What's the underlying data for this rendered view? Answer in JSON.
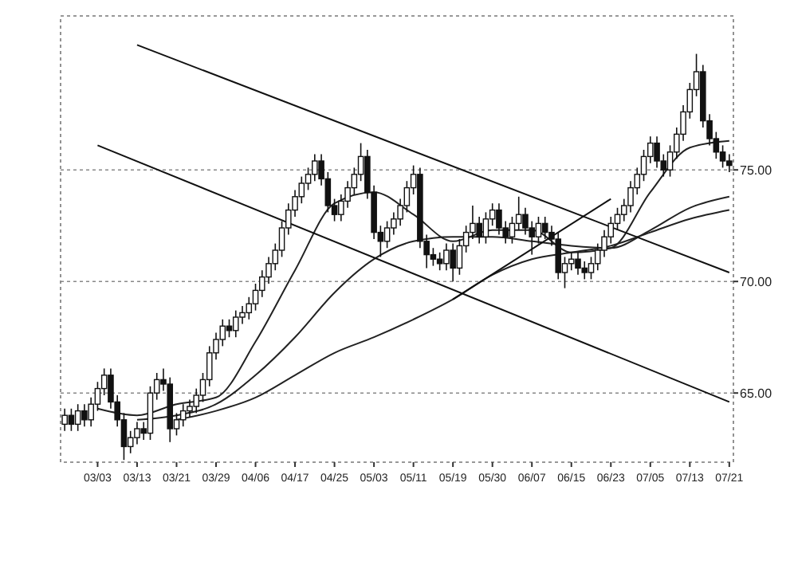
{
  "chart_data": {
    "type": "candlestick",
    "color": "#111111",
    "categories": [
      null,
      null,
      null,
      null,
      null,
      "03/03",
      null,
      null,
      null,
      null,
      null,
      "03/13",
      null,
      null,
      null,
      null,
      null,
      "03/21",
      null,
      null,
      null,
      null,
      null,
      "03/29",
      null,
      null,
      null,
      null,
      null,
      "04/06",
      null,
      null,
      null,
      null,
      null,
      "04/17",
      null,
      null,
      null,
      null,
      null,
      "04/25",
      null,
      null,
      null,
      null,
      null,
      "05/03",
      null,
      null,
      null,
      null,
      null,
      "05/11",
      null,
      null,
      null,
      null,
      null,
      "05/19",
      null,
      null,
      null,
      null,
      null,
      "05/30",
      null,
      null,
      null,
      null,
      null,
      "06/07",
      null,
      null,
      null,
      null,
      null,
      "06/15",
      null,
      null,
      null,
      null,
      null,
      "06/23",
      null,
      null,
      null,
      null,
      null,
      "07/05",
      null,
      null,
      null,
      null,
      null,
      "07/13",
      null,
      null,
      null,
      null,
      null,
      "07/21"
    ],
    "ohlc": [
      [
        63.6,
        64.3,
        63.3,
        64.0
      ],
      [
        64.0,
        64.3,
        63.3,
        63.6
      ],
      [
        63.6,
        64.5,
        63.3,
        64.2
      ],
      [
        64.2,
        64.5,
        63.5,
        63.8
      ],
      [
        63.8,
        64.8,
        63.5,
        64.5
      ],
      [
        64.5,
        65.5,
        64.2,
        65.2
      ],
      [
        65.2,
        66.1,
        64.9,
        65.8
      ],
      [
        65.8,
        66.1,
        64.3,
        64.6
      ],
      [
        64.6,
        64.9,
        63.5,
        63.8
      ],
      [
        63.8,
        64.1,
        62.0,
        62.6
      ],
      [
        62.6,
        63.3,
        62.3,
        63.0
      ],
      [
        63.0,
        63.7,
        62.7,
        63.4
      ],
      [
        63.4,
        63.7,
        62.9,
        63.2
      ],
      [
        63.2,
        65.3,
        62.9,
        65.0
      ],
      [
        65.0,
        65.9,
        64.7,
        65.6
      ],
      [
        65.6,
        66.1,
        65.1,
        65.4
      ],
      [
        65.4,
        65.7,
        62.8,
        63.4
      ],
      [
        63.4,
        64.1,
        63.1,
        63.8
      ],
      [
        63.8,
        64.5,
        63.5,
        64.2
      ],
      [
        64.2,
        64.7,
        63.9,
        64.4
      ],
      [
        64.4,
        65.2,
        64.1,
        64.9
      ],
      [
        64.9,
        65.9,
        64.6,
        65.6
      ],
      [
        65.6,
        67.1,
        65.3,
        66.8
      ],
      [
        66.8,
        67.7,
        66.5,
        67.4
      ],
      [
        67.4,
        68.3,
        67.1,
        68.0
      ],
      [
        68.0,
        68.3,
        67.5,
        67.8
      ],
      [
        67.8,
        68.7,
        67.5,
        68.4
      ],
      [
        68.4,
        68.9,
        68.1,
        68.6
      ],
      [
        68.6,
        69.3,
        68.3,
        69.0
      ],
      [
        69.0,
        69.9,
        68.7,
        69.6
      ],
      [
        69.6,
        70.5,
        69.3,
        70.2
      ],
      [
        70.2,
        71.1,
        69.9,
        70.8
      ],
      [
        70.8,
        71.7,
        70.5,
        71.4
      ],
      [
        71.4,
        72.7,
        71.1,
        72.4
      ],
      [
        72.4,
        73.5,
        72.1,
        73.2
      ],
      [
        73.2,
        74.1,
        72.9,
        73.8
      ],
      [
        73.8,
        74.7,
        73.5,
        74.4
      ],
      [
        74.4,
        75.1,
        74.1,
        74.8
      ],
      [
        74.8,
        75.7,
        74.5,
        75.4
      ],
      [
        75.4,
        75.7,
        74.3,
        74.6
      ],
      [
        74.6,
        74.9,
        73.1,
        73.4
      ],
      [
        73.4,
        73.7,
        72.7,
        73.0
      ],
      [
        73.0,
        73.9,
        72.7,
        73.6
      ],
      [
        73.6,
        74.5,
        73.3,
        74.2
      ],
      [
        74.2,
        75.1,
        73.9,
        74.8
      ],
      [
        74.8,
        76.2,
        74.5,
        75.6
      ],
      [
        75.6,
        75.9,
        73.7,
        74.0
      ],
      [
        74.0,
        74.3,
        71.9,
        72.2
      ],
      [
        72.2,
        72.5,
        71.1,
        71.8
      ],
      [
        71.8,
        72.7,
        71.5,
        72.4
      ],
      [
        72.4,
        73.1,
        72.1,
        72.8
      ],
      [
        72.8,
        73.7,
        72.5,
        73.4
      ],
      [
        73.4,
        74.5,
        73.1,
        74.2
      ],
      [
        74.2,
        75.2,
        73.9,
        74.8
      ],
      [
        74.8,
        75.1,
        71.5,
        71.8
      ],
      [
        71.8,
        72.1,
        70.6,
        71.2
      ],
      [
        71.2,
        71.5,
        70.7,
        71.0
      ],
      [
        71.0,
        71.3,
        70.5,
        70.8
      ],
      [
        70.8,
        71.7,
        70.5,
        71.4
      ],
      [
        71.4,
        71.7,
        70.0,
        70.6
      ],
      [
        70.6,
        71.9,
        70.3,
        71.6
      ],
      [
        71.6,
        72.5,
        71.3,
        72.2
      ],
      [
        72.2,
        73.4,
        71.9,
        72.6
      ],
      [
        72.6,
        72.9,
        71.7,
        72.0
      ],
      [
        72.0,
        73.1,
        71.7,
        72.8
      ],
      [
        72.8,
        73.5,
        72.5,
        73.2
      ],
      [
        73.2,
        73.5,
        72.1,
        72.4
      ],
      [
        72.4,
        72.7,
        71.7,
        72.0
      ],
      [
        72.0,
        72.9,
        71.7,
        72.6
      ],
      [
        72.6,
        73.8,
        72.3,
        73.0
      ],
      [
        73.0,
        73.3,
        72.1,
        72.4
      ],
      [
        72.4,
        72.7,
        71.2,
        72.0
      ],
      [
        72.0,
        72.9,
        71.7,
        72.6
      ],
      [
        72.6,
        72.9,
        71.9,
        72.2
      ],
      [
        72.2,
        72.5,
        71.6,
        71.9
      ],
      [
        71.9,
        72.2,
        70.1,
        70.4
      ],
      [
        70.4,
        71.1,
        69.7,
        70.8
      ],
      [
        70.8,
        71.3,
        70.5,
        71.0
      ],
      [
        71.0,
        71.3,
        70.3,
        70.6
      ],
      [
        70.6,
        70.9,
        70.1,
        70.4
      ],
      [
        70.4,
        71.1,
        70.1,
        70.8
      ],
      [
        70.8,
        71.7,
        70.5,
        71.4
      ],
      [
        71.4,
        72.3,
        71.1,
        72.0
      ],
      [
        72.0,
        72.9,
        71.7,
        72.6
      ],
      [
        72.6,
        73.3,
        72.3,
        73.0
      ],
      [
        73.0,
        73.7,
        72.7,
        73.4
      ],
      [
        73.4,
        74.5,
        73.1,
        74.2
      ],
      [
        74.2,
        75.1,
        73.9,
        74.8
      ],
      [
        74.8,
        75.9,
        74.5,
        75.6
      ],
      [
        75.6,
        76.5,
        75.3,
        76.2
      ],
      [
        76.2,
        76.5,
        75.1,
        75.4
      ],
      [
        75.4,
        75.7,
        74.7,
        75.0
      ],
      [
        75.0,
        76.1,
        74.7,
        75.8
      ],
      [
        75.8,
        76.9,
        75.5,
        76.6
      ],
      [
        76.6,
        77.9,
        76.3,
        77.6
      ],
      [
        77.6,
        78.9,
        77.3,
        78.6
      ],
      [
        78.6,
        80.2,
        78.3,
        79.4
      ],
      [
        79.4,
        79.7,
        76.9,
        77.2
      ],
      [
        77.2,
        77.5,
        76.1,
        76.4
      ],
      [
        76.4,
        76.7,
        75.5,
        75.8
      ],
      [
        75.8,
        76.1,
        75.1,
        75.4
      ],
      [
        75.4,
        75.7,
        74.9,
        75.2
      ]
    ],
    "series": [
      {
        "type": "line",
        "color": "#222222",
        "x": [
          "03/03",
          "03/13",
          "03/21",
          "03/29",
          "04/06",
          "04/17",
          "04/25",
          "05/03",
          "05/11",
          "05/19",
          "05/30",
          "06/07",
          "06/15",
          "06/23",
          "07/05",
          "07/13",
          "07/21"
        ],
        "values": [
          64.3,
          64.0,
          64.5,
          64.8,
          67.3,
          70.5,
          73.5,
          74.0,
          73.0,
          71.8,
          72.3,
          72.3,
          71.3,
          71.5,
          74.0,
          76.0,
          76.3
        ]
      },
      {
        "type": "line",
        "color": "#222222",
        "x": [
          "03/13",
          "03/21",
          "03/29",
          "04/06",
          "04/17",
          "04/25",
          "05/03",
          "05/11",
          "05/19",
          "05/30",
          "06/07",
          "06/15",
          "06/23",
          "07/05",
          "07/13",
          "07/21"
        ],
        "values": [
          63.8,
          64.0,
          64.5,
          65.8,
          67.5,
          69.5,
          71.0,
          71.8,
          72.0,
          72.0,
          71.8,
          71.6,
          71.5,
          72.3,
          73.3,
          73.8
        ]
      },
      {
        "type": "line",
        "color": "#222222",
        "x": [
          "03/21",
          "03/29",
          "04/06",
          "04/17",
          "04/25",
          "05/03",
          "05/11",
          "05/19",
          "05/30",
          "06/07",
          "06/15",
          "06/23",
          "07/05",
          "07/13",
          "07/21"
        ],
        "values": [
          63.8,
          64.2,
          64.8,
          65.8,
          66.8,
          67.5,
          68.3,
          69.2,
          70.3,
          71.0,
          71.3,
          71.6,
          72.2,
          72.8,
          73.2
        ]
      },
      {
        "type": "line",
        "color": "#111111",
        "x": [
          "03/13",
          "07/21"
        ],
        "values": [
          80.6,
          70.4
        ]
      },
      {
        "type": "line",
        "color": "#111111",
        "x": [
          "03/03",
          "07/21"
        ],
        "values": [
          76.1,
          64.6
        ]
      },
      {
        "type": "line",
        "color": "#111111",
        "x": [
          "05/19",
          "06/23"
        ],
        "values": [
          69.2,
          73.7
        ]
      }
    ],
    "ylim": [
      61.9,
      81.9
    ],
    "yticks": [
      {
        "value": 65,
        "label": "65.00"
      },
      {
        "value": 70,
        "label": "70.00"
      },
      {
        "value": 75,
        "label": "75.00"
      }
    ],
    "grid": "y"
  }
}
